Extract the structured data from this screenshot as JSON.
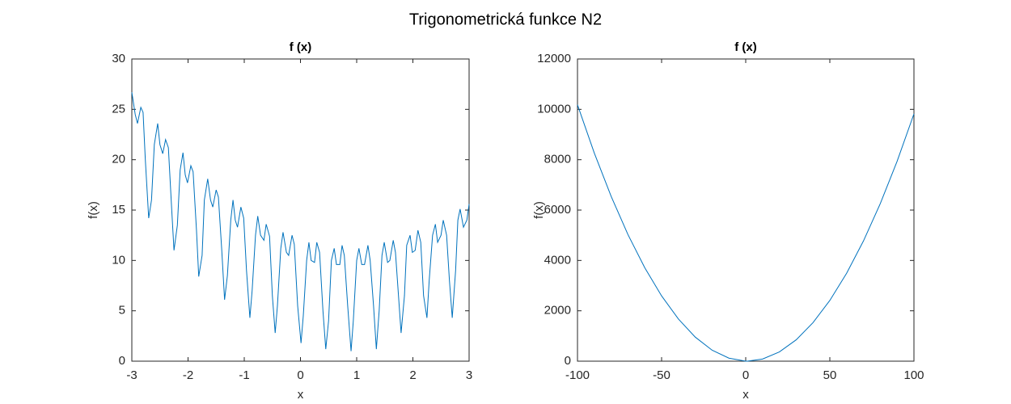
{
  "figure_title": "Trigonometrická funkce N2",
  "chart_data": [
    {
      "type": "line",
      "title": "f (x)",
      "x_label": "x",
      "y_label": "f(x)",
      "color": "#0072bd",
      "xlim": [
        -3,
        3
      ],
      "xticks": [
        -3,
        -2,
        -1,
        0,
        1,
        2,
        3
      ],
      "ylim": [
        0,
        30
      ],
      "yticks": [
        0,
        5,
        10,
        15,
        20,
        25,
        30
      ],
      "x": [
        -3,
        -2.94,
        -2.9,
        -2.84,
        -2.8,
        -2.76,
        -2.7,
        -2.65,
        -2.6,
        -2.54,
        -2.5,
        -2.45,
        -2.4,
        -2.35,
        -2.29,
        -2.25,
        -2.19,
        -2.14,
        -2.09,
        -2.05,
        -2.01,
        -1.95,
        -1.91,
        -1.85,
        -1.81,
        -1.75,
        -1.71,
        -1.65,
        -1.6,
        -1.56,
        -1.5,
        -1.46,
        -1.4,
        -1.35,
        -1.3,
        -1.24,
        -1.2,
        -1.16,
        -1.12,
        -1.06,
        -1.01,
        -0.96,
        -0.9,
        -0.86,
        -0.8,
        -0.76,
        -0.71,
        -0.65,
        -0.61,
        -0.55,
        -0.5,
        -0.45,
        -0.41,
        -0.35,
        -0.31,
        -0.25,
        -0.21,
        -0.15,
        -0.11,
        -0.05,
        0.01,
        0.05,
        0.11,
        0.15,
        0.19,
        0.25,
        0.29,
        0.34,
        0.4,
        0.45,
        0.5,
        0.55,
        0.6,
        0.64,
        0.7,
        0.74,
        0.78,
        0.84,
        0.9,
        0.94,
        1,
        1.04,
        1.09,
        1.14,
        1.2,
        1.24,
        1.3,
        1.35,
        1.4,
        1.45,
        1.49,
        1.55,
        1.59,
        1.65,
        1.69,
        1.75,
        1.79,
        1.85,
        1.89,
        1.95,
        1.99,
        2.04,
        2.09,
        2.14,
        2.19,
        2.25,
        2.29,
        2.35,
        2.4,
        2.44,
        2.5,
        2.54,
        2.6,
        2.65,
        2.7,
        2.76,
        2.8,
        2.84,
        2.9,
        2.96,
        3
      ],
      "values": [
        26.7,
        24.5,
        23.6,
        25.2,
        24.7,
        20,
        14.2,
        16,
        21.5,
        23.6,
        21.5,
        20.6,
        22,
        21.2,
        15,
        11,
        13.5,
        19,
        20.7,
        18.5,
        17.7,
        19.4,
        18.8,
        13,
        8.4,
        10.5,
        16,
        18.1,
        16,
        15.3,
        17,
        16.3,
        11,
        6.1,
        8.5,
        14,
        16,
        14,
        13.3,
        15.3,
        14.2,
        9,
        4.3,
        7,
        12.5,
        14.4,
        12.5,
        12,
        13.6,
        12.4,
        6.5,
        2.8,
        5.5,
        11.2,
        12.8,
        10.8,
        10.5,
        12.5,
        11.6,
        5.5,
        1.8,
        4.5,
        10,
        11.8,
        10,
        9.8,
        11.8,
        10.8,
        5,
        1.2,
        4,
        10,
        11.2,
        9.6,
        9.6,
        11.5,
        10.5,
        5.5,
        1,
        4,
        10,
        11.2,
        9.6,
        9.6,
        11.5,
        10,
        5.5,
        1.2,
        5,
        10.5,
        11.8,
        9.8,
        10,
        12,
        10.8,
        6,
        2.8,
        6.5,
        11.5,
        12.5,
        10.8,
        11,
        13,
        11.8,
        6.5,
        4.3,
        8,
        12.5,
        13.6,
        11.8,
        12.5,
        14,
        12.5,
        8,
        4.3,
        9,
        14,
        15.1,
        13.3,
        14,
        15.6
      ]
    },
    {
      "type": "line",
      "title": "f (x)",
      "x_label": "x",
      "y_label": "f(x)",
      "color": "#0072bd",
      "xlim": [
        -100,
        100
      ],
      "xticks": [
        -100,
        -50,
        0,
        50,
        100
      ],
      "ylim": [
        0,
        12000
      ],
      "yticks": [
        0,
        2000,
        4000,
        6000,
        8000,
        10000,
        12000
      ],
      "x": [
        -100,
        -90,
        -80,
        -70,
        -60,
        -50,
        -40,
        -30,
        -20,
        -10,
        0,
        0.9,
        10,
        20,
        30,
        40,
        50,
        60,
        70,
        80,
        90,
        100
      ],
      "values": [
        10182,
        8264,
        6546,
        5028,
        3710,
        2592,
        1674,
        956,
        438,
        120,
        2,
        1,
        84,
        366,
        848,
        1530,
        2412,
        3494,
        4776,
        6258,
        7940,
        9822
      ]
    }
  ]
}
